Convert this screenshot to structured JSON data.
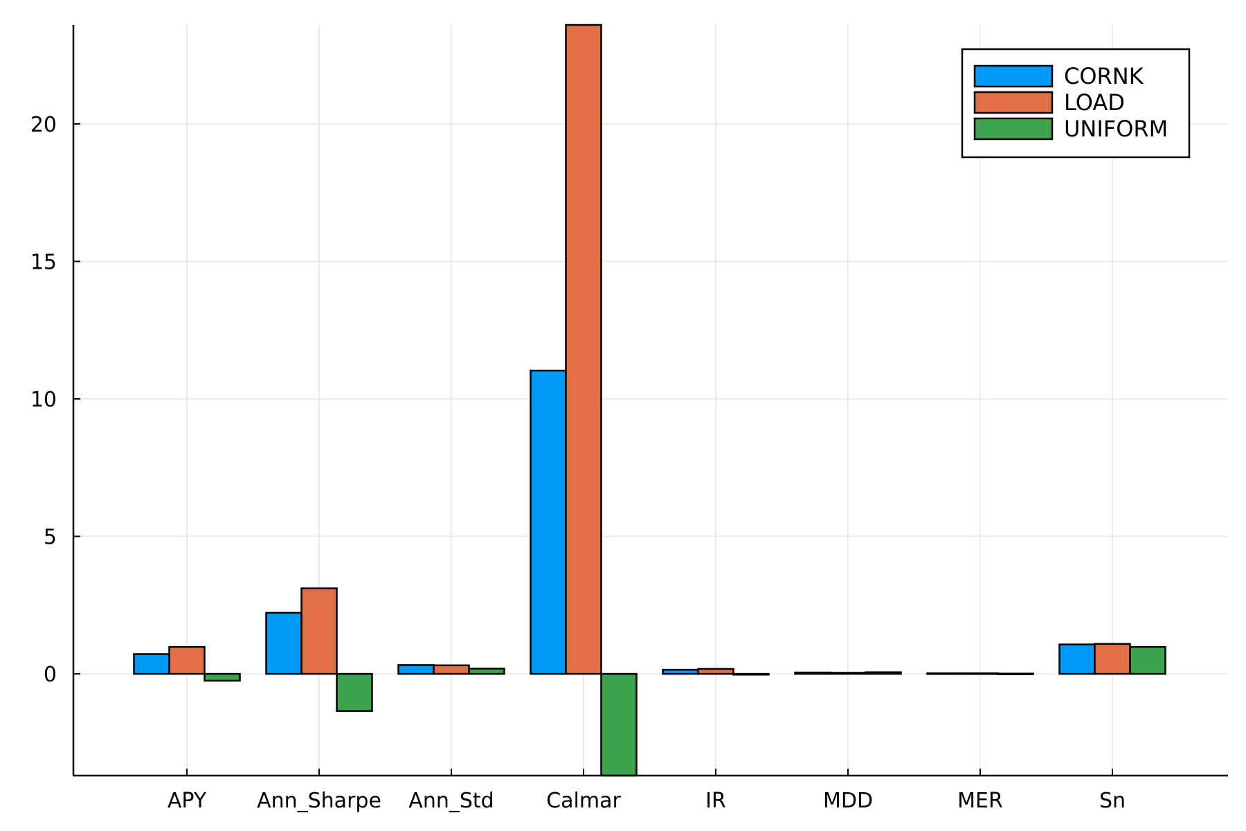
{
  "chart_data": {
    "type": "bar",
    "categories": [
      "APY",
      "Ann_Sharpe",
      "Ann_Std",
      "Calmar",
      "IR",
      "MDD",
      "MER",
      "Sn"
    ],
    "series": [
      {
        "name": "CORNK",
        "color": "#009af9",
        "values": [
          0.72,
          2.22,
          0.32,
          11.03,
          0.15,
          0.05,
          0.02,
          1.07
        ]
      },
      {
        "name": "LOAD",
        "color": "#e26f46",
        "values": [
          0.98,
          3.11,
          0.31,
          23.6,
          0.18,
          0.04,
          0.02,
          1.09
        ]
      },
      {
        "name": "UNIFORM",
        "color": "#3da44d",
        "values": [
          -0.25,
          -1.35,
          0.19,
          -3.9,
          -0.03,
          0.06,
          0.01,
          0.98
        ]
      }
    ],
    "ylim": [
      -3.7,
      23.6
    ],
    "yticks": [
      0,
      5,
      10,
      15,
      20
    ],
    "ytick_labels": [
      "0",
      "5",
      "10",
      "15",
      "20"
    ],
    "grid": true,
    "legend_position": "top-right",
    "title": "",
    "xlabel": "",
    "ylabel": ""
  }
}
